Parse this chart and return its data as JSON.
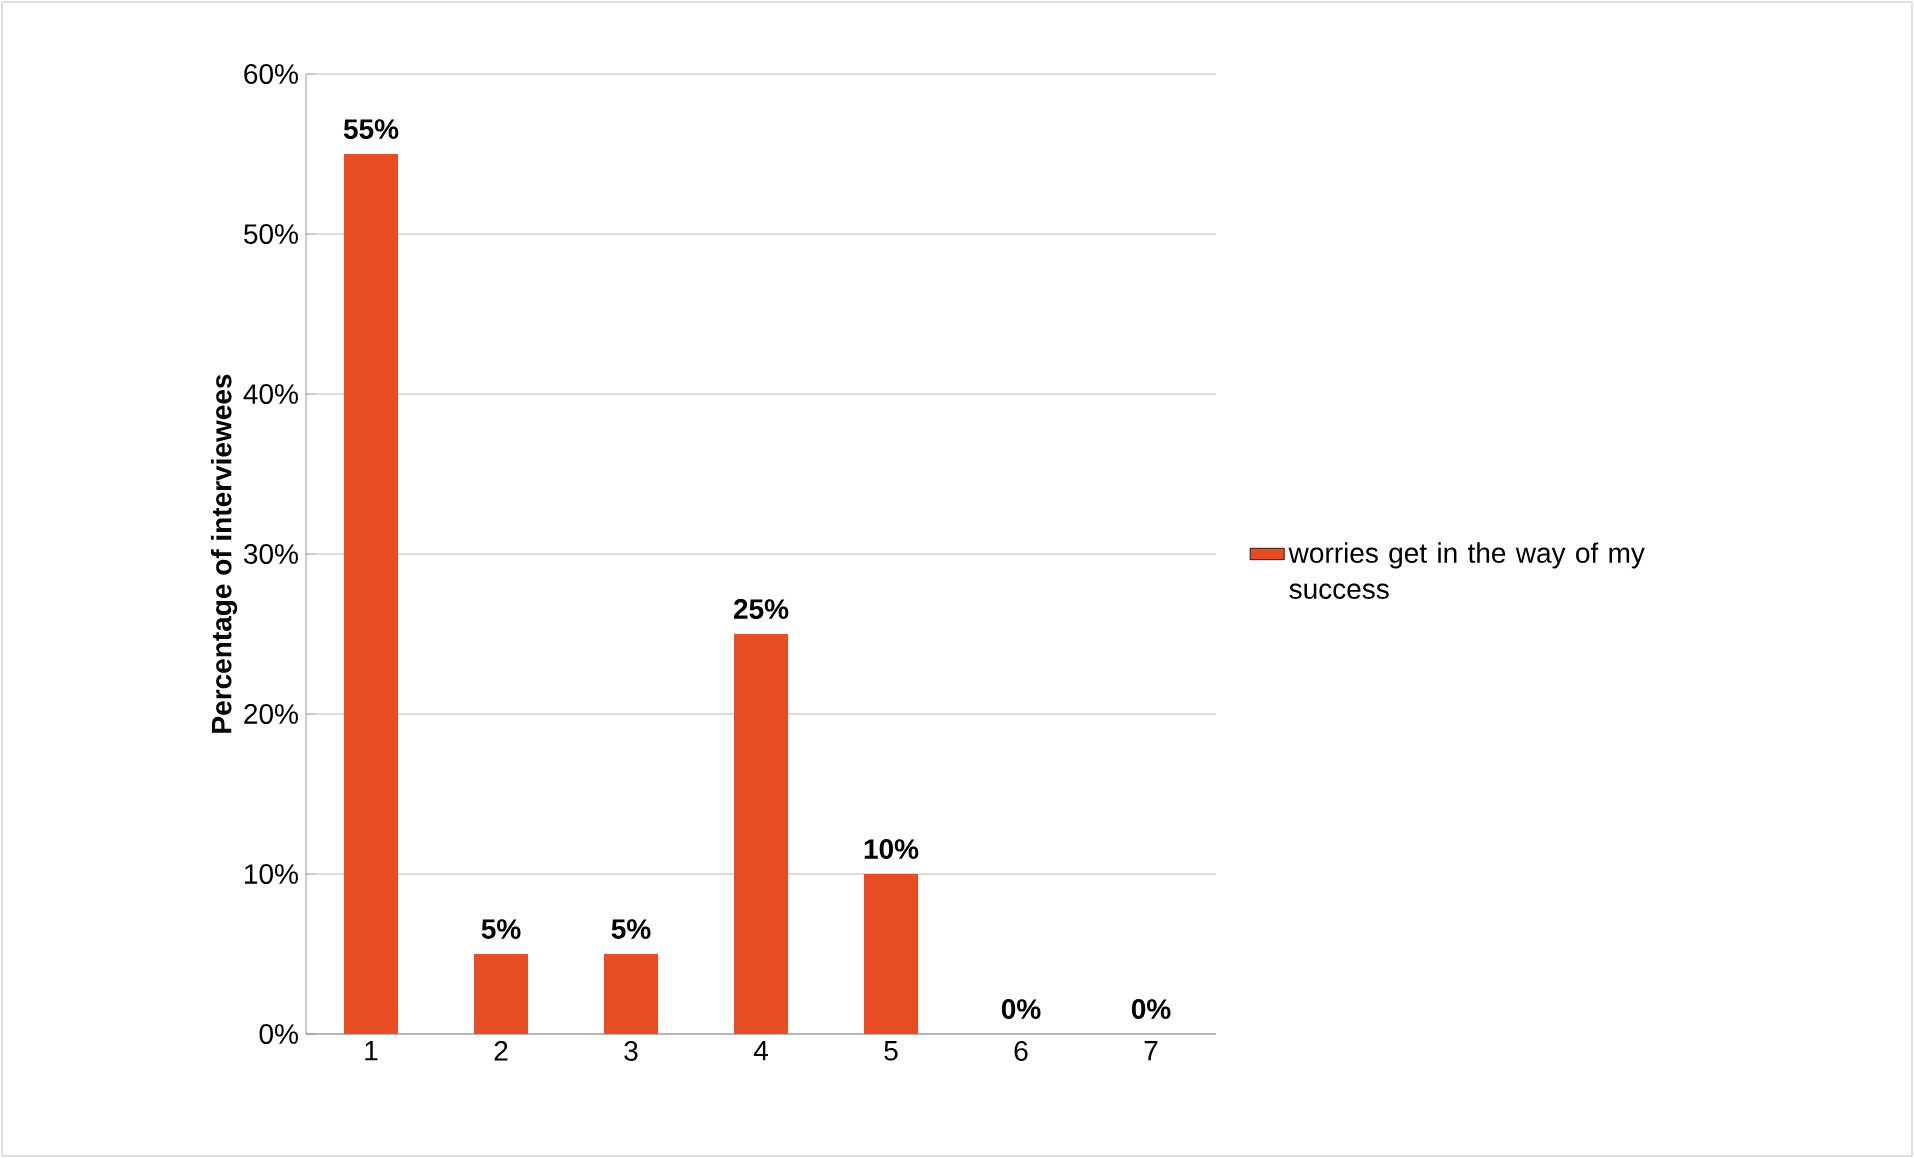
{
  "chart_data": {
    "type": "bar",
    "ylabel": "Percentage of interviewees",
    "categories": [
      "1",
      "2",
      "3",
      "4",
      "5",
      "6",
      "7"
    ],
    "series": [
      {
        "name": "worries get in the way of my success",
        "color": "#e84c22",
        "values": [
          55,
          5,
          5,
          25,
          10,
          0,
          0
        ],
        "value_labels": [
          "55%",
          "5%",
          "5%",
          "25%",
          "10%",
          "0%",
          "0%"
        ]
      }
    ],
    "ylim": [
      0,
      60
    ],
    "yticks": [
      {
        "value": 0,
        "label": "0%"
      },
      {
        "value": 10,
        "label": "10%"
      },
      {
        "value": 20,
        "label": "20%"
      },
      {
        "value": 30,
        "label": "30%"
      },
      {
        "value": 40,
        "label": "40%"
      },
      {
        "value": 50,
        "label": "50%"
      },
      {
        "value": 60,
        "label": "60%"
      }
    ],
    "grid": "y",
    "legend": "right"
  }
}
